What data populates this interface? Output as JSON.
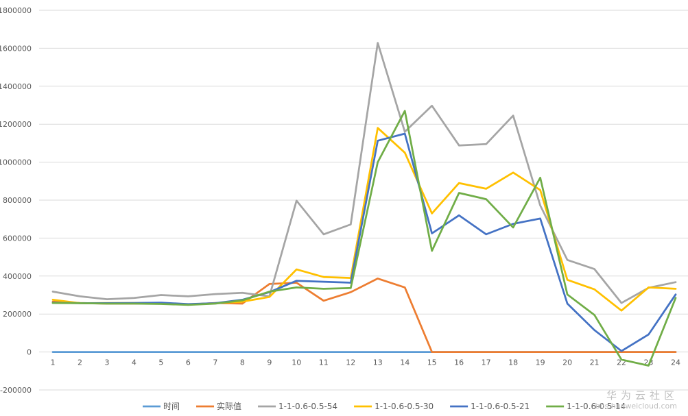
{
  "chart_data": {
    "type": "line",
    "title": "",
    "xlabel": "",
    "ylabel": "",
    "x": [
      1,
      2,
      3,
      4,
      5,
      6,
      7,
      8,
      9,
      10,
      11,
      12,
      13,
      14,
      15,
      16,
      17,
      18,
      19,
      20,
      21,
      22,
      23,
      24
    ],
    "ylim": [
      -200000,
      1800000
    ],
    "yticks": [
      -200000,
      0,
      200000,
      400000,
      600000,
      800000,
      1000000,
      1200000,
      1400000,
      1600000,
      1800000
    ],
    "grid": "horizontal",
    "legend_position": "bottom",
    "series": [
      {
        "name": "时间",
        "color": "#5B9BD5",
        "values": [
          0,
          0,
          0,
          0,
          0,
          0,
          0,
          0,
          0,
          0,
          0,
          0,
          0,
          0,
          0,
          0,
          0,
          0,
          0,
          0,
          0,
          0,
          0,
          0
        ]
      },
      {
        "name": "实际值",
        "color": "#ED7D31",
        "values": [
          265000,
          258000,
          255000,
          255000,
          255000,
          250000,
          258000,
          255000,
          358000,
          365000,
          270000,
          315000,
          387000,
          340000,
          0,
          0,
          0,
          0,
          0,
          0,
          0,
          0,
          0,
          0
        ]
      },
      {
        "name": "1-1-0.6-0.5-54",
        "color": "#A5A5A5",
        "values": [
          318000,
          293000,
          278000,
          285000,
          300000,
          293000,
          305000,
          312000,
          293000,
          797000,
          620000,
          672000,
          1628000,
          1160000,
          1297000,
          1088000,
          1095000,
          1245000,
          772000,
          485000,
          437000,
          258000,
          338000,
          368000
        ]
      },
      {
        "name": "1-1-0.6-0.5-30",
        "color": "#FFC000",
        "values": [
          275000,
          257000,
          258000,
          258000,
          258000,
          251000,
          257000,
          265000,
          290000,
          435000,
          395000,
          390000,
          1180000,
          1050000,
          730000,
          890000,
          860000,
          945000,
          853000,
          380000,
          330000,
          218000,
          340000,
          333000
        ]
      },
      {
        "name": "1-1-0.6-0.5-21",
        "color": "#4472C4",
        "values": [
          260000,
          257000,
          257000,
          258000,
          260000,
          252000,
          257000,
          275000,
          315000,
          375000,
          370000,
          365000,
          1113000,
          1150000,
          625000,
          720000,
          620000,
          675000,
          703000,
          255000,
          115000,
          5000,
          92000,
          303000
        ]
      },
      {
        "name": "1-1-0.6-0.5-14",
        "color": "#70AD47",
        "values": [
          258000,
          257000,
          255000,
          255000,
          253000,
          248000,
          255000,
          272000,
          318000,
          340000,
          333000,
          337000,
          1000000,
          1270000,
          533000,
          838000,
          805000,
          656000,
          918000,
          303000,
          195000,
          -40000,
          -72000,
          285000
        ]
      }
    ]
  },
  "watermark": {
    "cn": "华为云社区",
    "url": "bbs.huaweicloud.com"
  }
}
